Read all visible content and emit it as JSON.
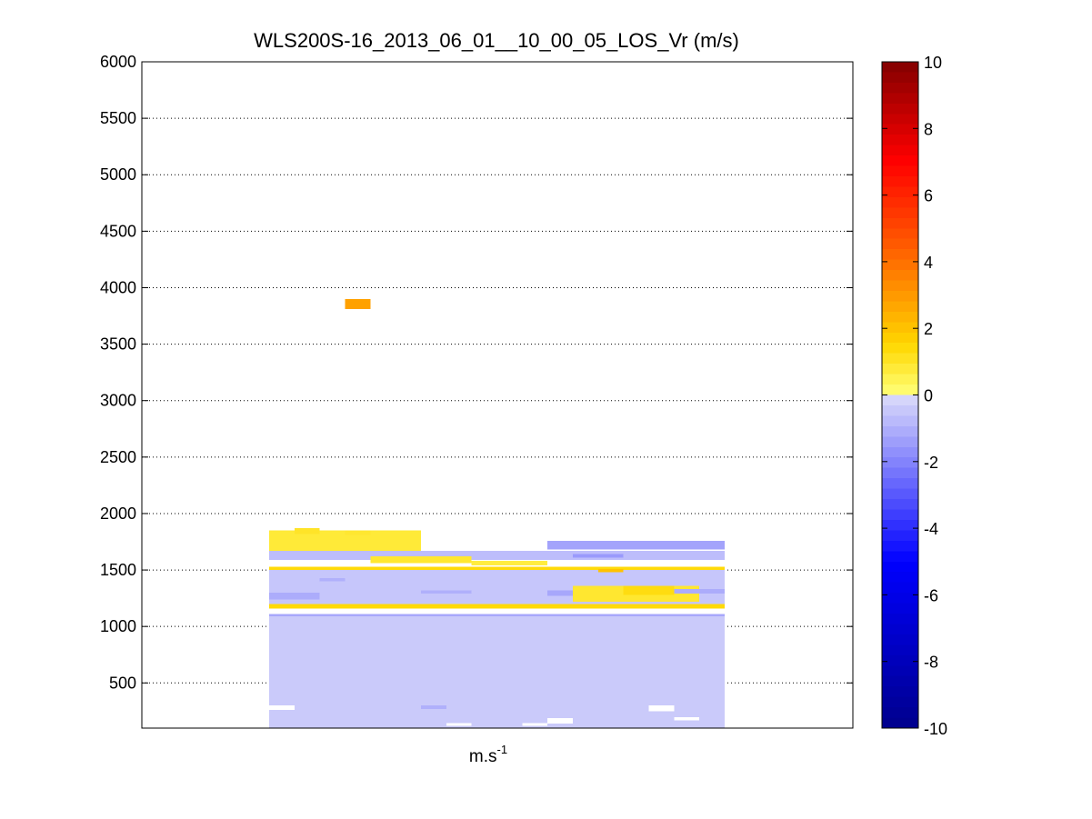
{
  "chart_data": {
    "type": "heatmap",
    "title": "WLS200S-16_2013_06_01__10_00_05_LOS_Vr (m/s)",
    "xlabel": "m.s",
    "xlabel_superscript": "-1",
    "ylabel": "",
    "ylim": [
      100,
      6000
    ],
    "yticks": [
      500,
      1000,
      1500,
      2000,
      2500,
      3000,
      3500,
      4000,
      4500,
      5000,
      5500,
      6000
    ],
    "grid": true,
    "colorbar": {
      "lim": [
        -10,
        10
      ],
      "ticks": [
        -10,
        -8,
        -6,
        -4,
        -2,
        0,
        2,
        4,
        6,
        8,
        10
      ]
    },
    "columns": 18,
    "cells": [
      {
        "x0": 0,
        "x1": 18,
        "y0": 100,
        "y1": 1090,
        "v": -0.4
      },
      {
        "x0": 0,
        "x1": 18,
        "y0": 1090,
        "y1": 1110,
        "v": -1.2
      },
      {
        "x0": 0,
        "x1": 18,
        "y0": 1160,
        "y1": 1200,
        "v": 1.4
      },
      {
        "x0": 0,
        "x1": 18,
        "y0": 1200,
        "y1": 1500,
        "v": -0.5
      },
      {
        "x0": 0,
        "x1": 18,
        "y0": 1500,
        "y1": 1530,
        "v": 1.4
      },
      {
        "x0": 0,
        "x1": 6,
        "y0": 1670,
        "y1": 1850,
        "v": 0.8
      },
      {
        "x0": 1,
        "x1": 2,
        "y0": 1820,
        "y1": 1870,
        "v": 1.0
      },
      {
        "x0": 3,
        "x1": 4,
        "y0": 1810,
        "y1": 1850,
        "v": 0.9
      },
      {
        "x0": 0,
        "x1": 18,
        "y0": 1590,
        "y1": 1670,
        "v": -0.7
      },
      {
        "x0": 11,
        "x1": 18,
        "y0": 1680,
        "y1": 1760,
        "v": -1.3
      },
      {
        "x0": 12,
        "x1": 14,
        "y0": 1610,
        "y1": 1640,
        "v": -1.5
      },
      {
        "x0": 4,
        "x1": 8,
        "y0": 1560,
        "y1": 1620,
        "v": 0.9
      },
      {
        "x0": 8,
        "x1": 11,
        "y0": 1540,
        "y1": 1580,
        "v": 0.7
      },
      {
        "x0": 0,
        "x1": 2,
        "y0": 1240,
        "y1": 1300,
        "v": -1.1
      },
      {
        "x0": 6,
        "x1": 8,
        "y0": 1290,
        "y1": 1320,
        "v": -1.0
      },
      {
        "x0": 11,
        "x1": 12,
        "y0": 1270,
        "y1": 1320,
        "v": -1.2
      },
      {
        "x0": 12,
        "x1": 17,
        "y0": 1220,
        "y1": 1360,
        "v": 0.9
      },
      {
        "x0": 14,
        "x1": 16,
        "y0": 1280,
        "y1": 1360,
        "v": 1.3
      },
      {
        "x0": 16,
        "x1": 18,
        "y0": 1290,
        "y1": 1330,
        "v": -1.1
      },
      {
        "x0": 13,
        "x1": 14,
        "y0": 1480,
        "y1": 1510,
        "v": 2.0
      },
      {
        "x0": 2,
        "x1": 3,
        "y0": 1400,
        "y1": 1430,
        "v": -1.0
      },
      {
        "x0": 6,
        "x1": 7,
        "y0": 270,
        "y1": 300,
        "v": -1.0
      },
      {
        "x0": 0,
        "x1": 1,
        "y0": 260,
        "y1": 300,
        "v": 0.0
      },
      {
        "x0": 15,
        "x1": 16,
        "y0": 250,
        "y1": 300,
        "v": 0.0
      },
      {
        "x0": 7,
        "x1": 8,
        "y0": 120,
        "y1": 145,
        "v": 0.0
      },
      {
        "x0": 10,
        "x1": 11,
        "y0": 120,
        "y1": 145,
        "v": 0.0
      },
      {
        "x0": 11,
        "x1": 12,
        "y0": 140,
        "y1": 190,
        "v": 0.0
      },
      {
        "x0": 16,
        "x1": 17,
        "y0": 170,
        "y1": 195,
        "v": 0.0
      },
      {
        "x0": 3,
        "x1": 4,
        "y0": 3810,
        "y1": 3900,
        "v": 2.8
      }
    ]
  }
}
